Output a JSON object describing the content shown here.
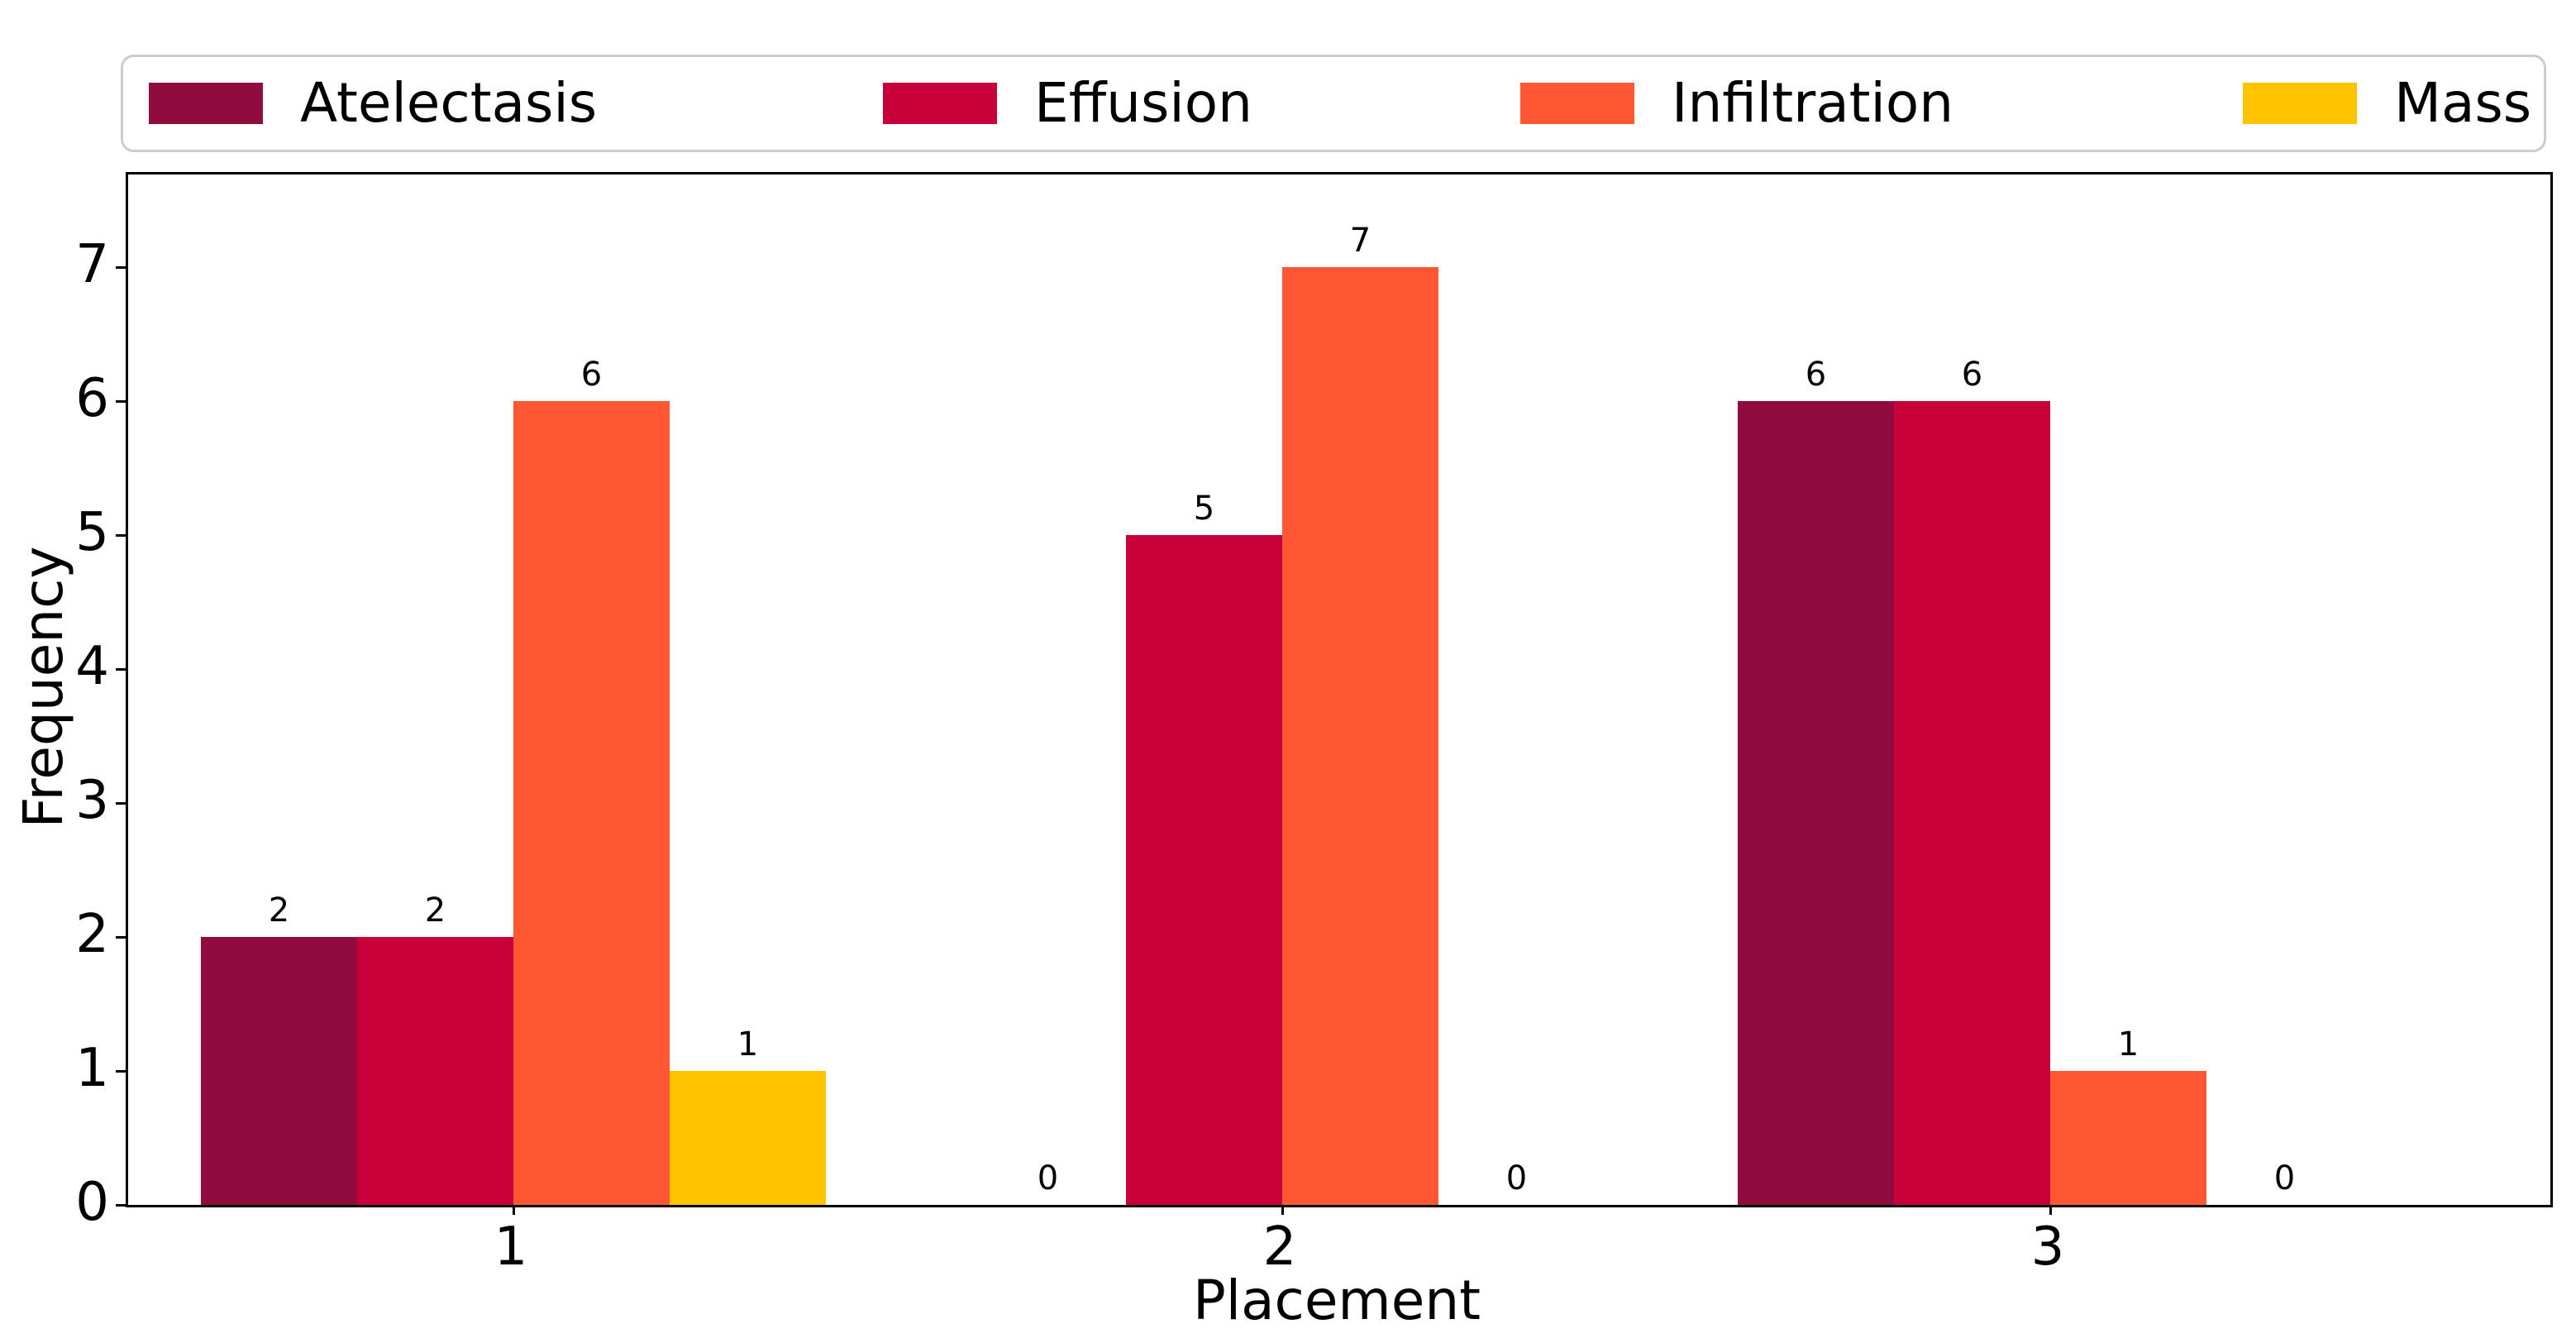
{
  "figure": {
    "background": "#ffffff",
    "axis_color": "#000000",
    "legend_border_color": "#cccccc"
  },
  "chart_data": {
    "type": "bar",
    "title": "",
    "xlabel": "Placement",
    "ylabel": "Frequency",
    "categories": [
      "1",
      "2",
      "3"
    ],
    "series": [
      {
        "name": "Atelectasis",
        "color": "#900C3F",
        "values": [
          2,
          0,
          6
        ]
      },
      {
        "name": "Effusion",
        "color": "#C70039",
        "values": [
          2,
          5,
          6
        ]
      },
      {
        "name": "Infiltration",
        "color": "#FF5733",
        "values": [
          6,
          7,
          1
        ]
      },
      {
        "name": "Mass",
        "color": "#FFC300",
        "values": [
          1,
          0,
          0
        ]
      }
    ],
    "bar_value_labels": [
      [
        2,
        2,
        6,
        1
      ],
      [
        0,
        5,
        7,
        0
      ],
      [
        6,
        6,
        1,
        0
      ]
    ],
    "yticks": [
      0,
      1,
      2,
      3,
      4,
      5,
      6,
      7
    ],
    "ylim": [
      0,
      7.7
    ],
    "grid": false,
    "legend_position": "top-outside",
    "legend_labels": [
      "Atelectasis",
      "Effusion",
      "Infiltration",
      "Mass"
    ]
  }
}
